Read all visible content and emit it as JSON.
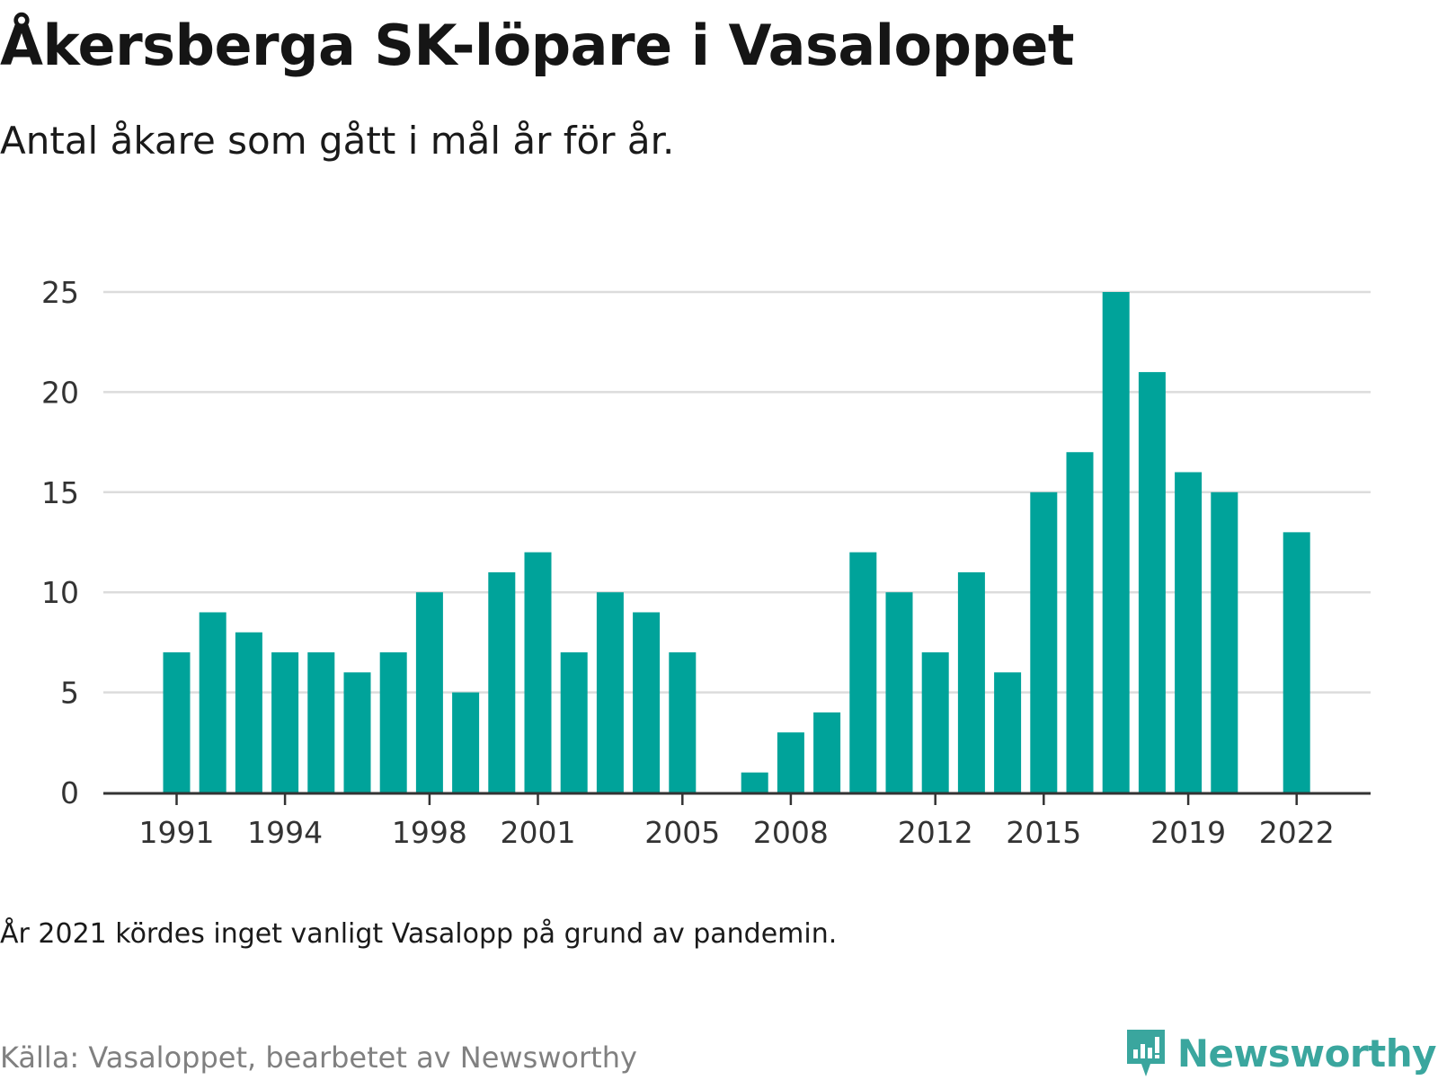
{
  "header": {
    "title": "Åkersberga SK-löpare i Vasaloppet",
    "subtitle": "Antal åkare som gått i mål år för år."
  },
  "footer": {
    "note": "År 2021 kördes inget vanligt Vasalopp på grund av pandemin.",
    "source": "Källa: Vasaloppet, bearbetet av Newsworthy",
    "brand": "Newsworthy",
    "logo_icon": "newsworthy-logo-icon"
  },
  "colors": {
    "bar": "#00a39a",
    "grid": "#dcdcdc",
    "axis": "#333333",
    "brand": "#3aa69e"
  },
  "chart_data": {
    "type": "bar",
    "title": "Åkersberga SK-löpare i Vasaloppet",
    "subtitle": "Antal åkare som gått i mål år för år.",
    "xlabel": "",
    "ylabel": "",
    "ylim": [
      0,
      25
    ],
    "y_ticks": [
      0,
      5,
      10,
      15,
      20,
      25
    ],
    "x_tick_labels": [
      "1991",
      "1994",
      "1998",
      "2001",
      "2005",
      "2008",
      "2012",
      "2015",
      "2019",
      "2022"
    ],
    "grid": true,
    "legend": "none",
    "categories": [
      1991,
      1992,
      1993,
      1994,
      1995,
      1996,
      1997,
      1998,
      1999,
      2000,
      2001,
      2002,
      2003,
      2004,
      2005,
      2006,
      2007,
      2008,
      2009,
      2010,
      2011,
      2012,
      2013,
      2014,
      2015,
      2016,
      2017,
      2018,
      2019,
      2020,
      2021,
      2022
    ],
    "values": [
      7,
      9,
      8,
      7,
      7,
      6,
      7,
      10,
      5,
      11,
      12,
      7,
      10,
      9,
      7,
      null,
      1,
      3,
      4,
      12,
      10,
      7,
      11,
      6,
      15,
      17,
      25,
      21,
      16,
      15,
      null,
      13
    ]
  }
}
